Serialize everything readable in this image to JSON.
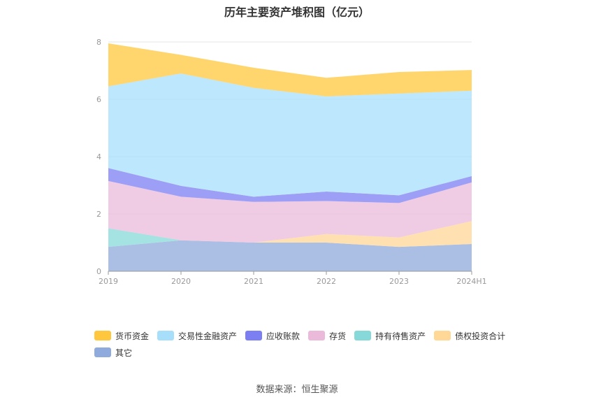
{
  "page": {
    "title": "历年主要资产堆积图（亿元）",
    "source": "数据来源：恒生聚源"
  },
  "chart_data": {
    "type": "area",
    "stacked": true,
    "title": "历年主要资产堆积图（亿元）",
    "categories": [
      "2019",
      "2020",
      "2021",
      "2022",
      "2023",
      "2024H1"
    ],
    "ylim": [
      0,
      8
    ],
    "yticks": [
      0,
      2,
      4,
      6,
      8
    ],
    "grid": true,
    "legend_position": "bottom",
    "series": [
      {
        "name": "其它",
        "color": "#8faadc",
        "values": [
          0.85,
          1.08,
          1.0,
          1.0,
          0.85,
          0.95
        ]
      },
      {
        "name": "债权投资合计",
        "color": "#ffd797",
        "values": [
          0.0,
          0.0,
          0.0,
          0.3,
          0.33,
          0.8
        ]
      },
      {
        "name": "持有待售资产",
        "color": "#87d8d8",
        "values": [
          0.65,
          0.0,
          0.0,
          0.0,
          0.0,
          0.0
        ]
      },
      {
        "name": "存货",
        "color": "#ebbadb",
        "values": [
          1.65,
          1.52,
          1.42,
          1.15,
          1.2,
          1.35
        ]
      },
      {
        "name": "应收账款",
        "color": "#7b7ff2",
        "values": [
          0.45,
          0.38,
          0.18,
          0.33,
          0.27,
          0.22
        ]
      },
      {
        "name": "交易性金融资产",
        "color": "#a7dffb",
        "values": [
          2.85,
          3.92,
          3.8,
          3.32,
          3.55,
          2.98
        ]
      },
      {
        "name": "货币资金",
        "color": "#ffc73d",
        "values": [
          1.5,
          0.65,
          0.7,
          0.65,
          0.75,
          0.72
        ]
      }
    ],
    "legend_order": [
      "货币资金",
      "交易性金融资产",
      "应收账款",
      "存货",
      "持有待售资产",
      "债权投资合计",
      "其它"
    ]
  }
}
